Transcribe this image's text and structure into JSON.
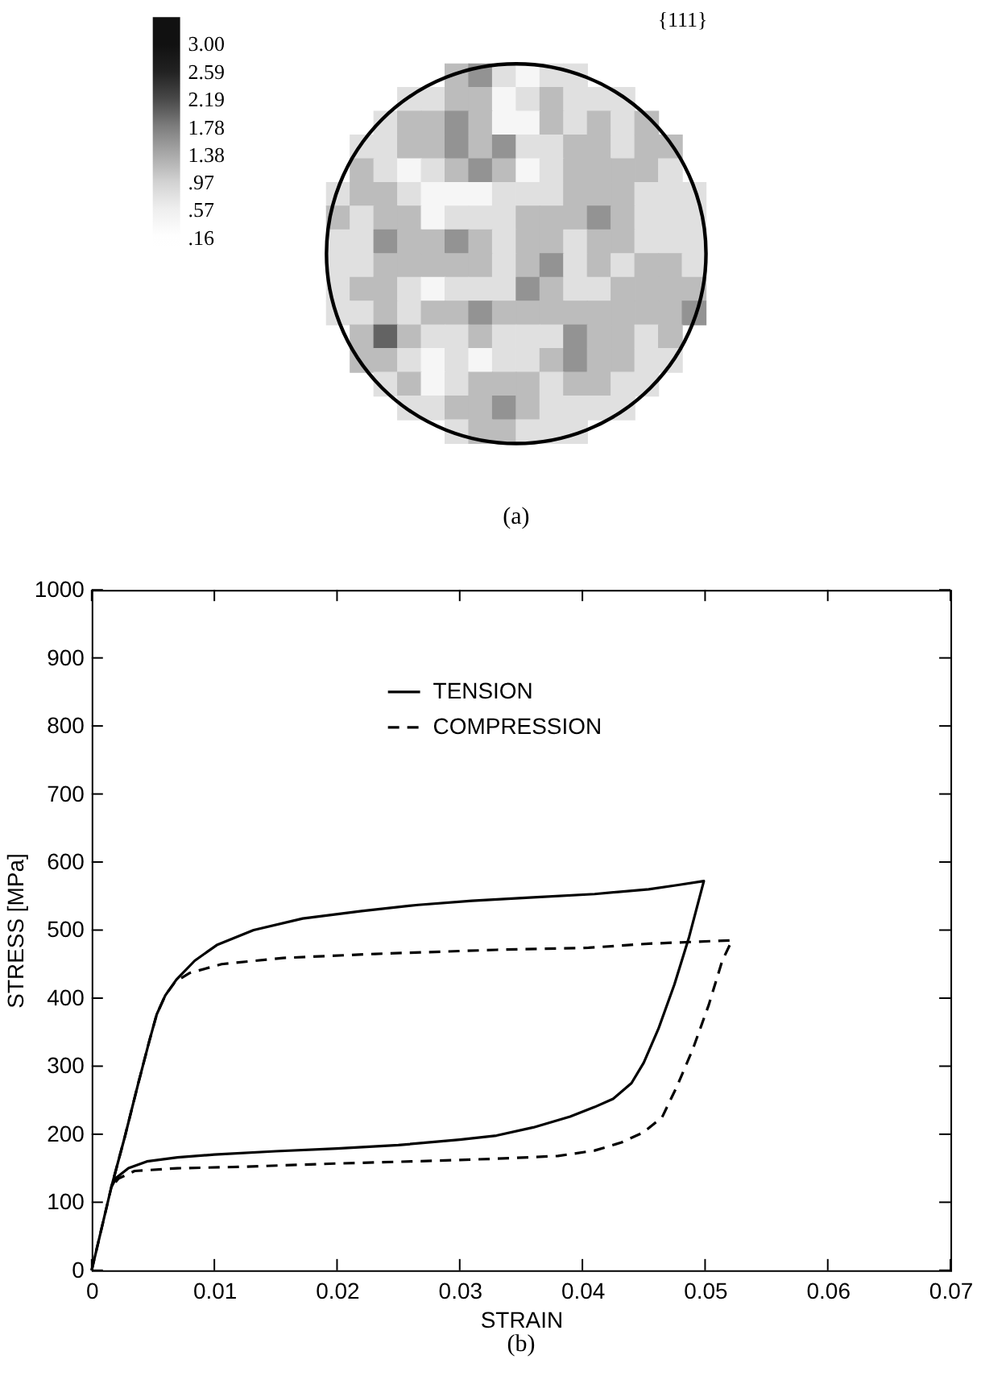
{
  "chart_data": [
    {
      "type": "heatmap",
      "title": "{111}",
      "categories": [
        null,
        null,
        null,
        null,
        null,
        null,
        null,
        null,
        null,
        null,
        null,
        null,
        null,
        null,
        null,
        null
      ],
      "y_categories": [
        null,
        null,
        null,
        null,
        null,
        null,
        null,
        null,
        null,
        null,
        null,
        null,
        null,
        null,
        null,
        null
      ],
      "cells": [
        [
          null,
          null,
          null,
          null,
          null,
          1.2,
          1.6,
          0.8,
          0.4,
          0.8,
          0.8,
          null,
          null,
          null,
          null,
          null
        ],
        [
          null,
          null,
          null,
          0.8,
          0.8,
          1.2,
          1.2,
          0.4,
          0.8,
          1.2,
          0.8,
          0.8,
          0.8,
          null,
          null,
          null
        ],
        [
          null,
          null,
          0.8,
          1.2,
          1.2,
          1.6,
          1.2,
          0.4,
          0.4,
          1.2,
          0.8,
          1.2,
          0.8,
          1.2,
          null,
          null
        ],
        [
          null,
          0.8,
          0.8,
          1.2,
          1.2,
          1.6,
          1.2,
          1.6,
          0.8,
          0.8,
          1.2,
          1.2,
          0.8,
          1.2,
          1.2,
          null
        ],
        [
          null,
          1.2,
          0.8,
          0.4,
          0.8,
          1.2,
          1.6,
          1.2,
          0.4,
          0.8,
          1.2,
          1.2,
          1.2,
          1.2,
          0.8,
          null
        ],
        [
          0.8,
          1.2,
          1.2,
          0.8,
          0.4,
          0.4,
          0.4,
          0.8,
          0.8,
          0.8,
          1.2,
          1.2,
          1.2,
          0.8,
          0.8,
          0.8
        ],
        [
          1.2,
          0.8,
          1.2,
          1.2,
          0.4,
          0.8,
          0.8,
          0.8,
          1.2,
          1.2,
          1.2,
          1.6,
          1.2,
          0.8,
          0.8,
          0.8
        ],
        [
          0.8,
          0.8,
          1.6,
          1.2,
          1.2,
          1.6,
          1.2,
          0.8,
          1.2,
          1.2,
          0.8,
          1.2,
          1.2,
          0.8,
          0.8,
          0.8
        ],
        [
          0.8,
          0.8,
          1.2,
          1.2,
          1.2,
          1.2,
          1.2,
          0.8,
          1.2,
          1.6,
          0.8,
          1.2,
          0.8,
          1.2,
          1.2,
          0.8
        ],
        [
          0.8,
          1.2,
          1.2,
          0.8,
          0.4,
          0.8,
          0.8,
          0.8,
          1.6,
          1.2,
          0.8,
          0.8,
          1.2,
          1.2,
          1.2,
          1.2
        ],
        [
          0.8,
          0.8,
          1.2,
          0.8,
          1.2,
          1.2,
          1.6,
          1.2,
          1.2,
          1.2,
          1.2,
          1.2,
          1.2,
          1.2,
          1.2,
          1.6
        ],
        [
          null,
          1.2,
          2.0,
          1.2,
          0.8,
          0.8,
          1.2,
          0.8,
          0.8,
          0.8,
          1.6,
          1.2,
          1.2,
          0.8,
          1.2,
          null
        ],
        [
          null,
          1.2,
          1.2,
          0.8,
          0.4,
          0.8,
          0.4,
          0.8,
          0.8,
          1.2,
          1.6,
          1.2,
          1.2,
          0.8,
          0.8,
          null
        ],
        [
          null,
          null,
          0.8,
          1.2,
          0.4,
          0.8,
          1.2,
          1.2,
          1.2,
          0.8,
          1.2,
          1.2,
          0.8,
          0.8,
          null,
          null
        ],
        [
          null,
          null,
          null,
          0.8,
          0.8,
          1.2,
          1.2,
          1.6,
          1.2,
          0.8,
          0.8,
          0.8,
          0.8,
          null,
          null,
          null
        ],
        [
          null,
          null,
          null,
          null,
          null,
          0.8,
          1.2,
          1.2,
          0.8,
          0.8,
          0.8,
          null,
          null,
          null,
          null,
          null
        ]
      ],
      "clim": [
        0,
        3.4
      ],
      "cticks": [
        {
          "value": 3.0,
          "label": "3.00"
        },
        2.59,
        2.19,
        1.78,
        1.38,
        {
          "value": 0.97,
          "label": ".97"
        },
        {
          "value": 0.57,
          "label": ".57"
        },
        {
          "value": 0.16,
          "label": ".16"
        }
      ],
      "colors": [
        "#111111",
        "#222222",
        "#4a4a4a",
        "#808080",
        "#aaaaaa",
        "#d4d4d4",
        "#f0f0f0",
        "#ffffff"
      ],
      "tick_labels": false,
      "annotations": [
        "(a)"
      ]
    },
    {
      "type": "line",
      "xlabel": "STRAIN",
      "ylabel": "STRESS [MPa]",
      "xlim": [
        0,
        0.07
      ],
      "ylim": [
        0,
        1000
      ],
      "xticks": [
        0,
        0.01,
        0.02,
        0.03,
        0.04,
        0.05,
        0.06,
        0.07
      ],
      "yticks": [
        0,
        100,
        200,
        300,
        400,
        500,
        600,
        700,
        800,
        900,
        1000
      ],
      "legend": "top",
      "series": [
        {
          "name": "TENSION",
          "color": "#000000",
          "line_style": "solid",
          "x": [
            0,
            0.0016,
            0.0027,
            0.0038,
            0.0047,
            0.0053,
            0.006,
            0.0069,
            0.0084,
            0.0102,
            0.0132,
            0.0172,
            0.022,
            0.0266,
            0.031,
            0.036,
            0.041,
            0.0454,
            0.0477,
            0.0499,
            0.0487,
            0.0475,
            0.0462,
            0.045,
            0.044,
            0.0425,
            0.041,
            0.039,
            0.036,
            0.033,
            0.03,
            0.025,
            0.02,
            0.015,
            0.01,
            0.007,
            0.0045,
            0.003,
            0.002,
            0.0016
          ],
          "values": [
            0,
            122,
            196,
            275,
            337,
            376,
            404,
            427,
            455,
            478,
            500,
            517,
            528,
            537,
            543,
            548,
            553,
            560,
            566,
            572,
            490,
            420,
            355,
            305,
            275,
            252,
            240,
            226,
            210,
            198,
            192,
            184,
            179,
            175,
            170,
            166,
            160,
            150,
            136,
            122
          ]
        },
        {
          "name": "COMPRESSION",
          "color": "#000000",
          "line_style": "dashed",
          "x": [
            0,
            0.0016,
            0.0027,
            0.0038,
            0.0047,
            0.0053,
            0.006,
            0.0068,
            0.008,
            0.0106,
            0.0156,
            0.0231,
            0.033,
            0.0405,
            0.0454,
            0.0522,
            0.0514,
            0.0503,
            0.049,
            0.0477,
            0.0465,
            0.045,
            0.0432,
            0.041,
            0.038,
            0.033,
            0.028,
            0.02,
            0.012,
            0.007,
            0.0035,
            0.0022,
            0.0016
          ],
          "values": [
            0,
            122,
            196,
            275,
            337,
            376,
            404,
            424,
            437,
            450,
            459,
            465,
            471,
            474,
            480,
            485,
            455,
            390,
            325,
            270,
            225,
            203,
            188,
            176,
            168,
            164,
            161,
            157,
            152,
            150,
            146,
            135,
            122
          ]
        }
      ],
      "annotations": [
        "(b)"
      ]
    }
  ]
}
